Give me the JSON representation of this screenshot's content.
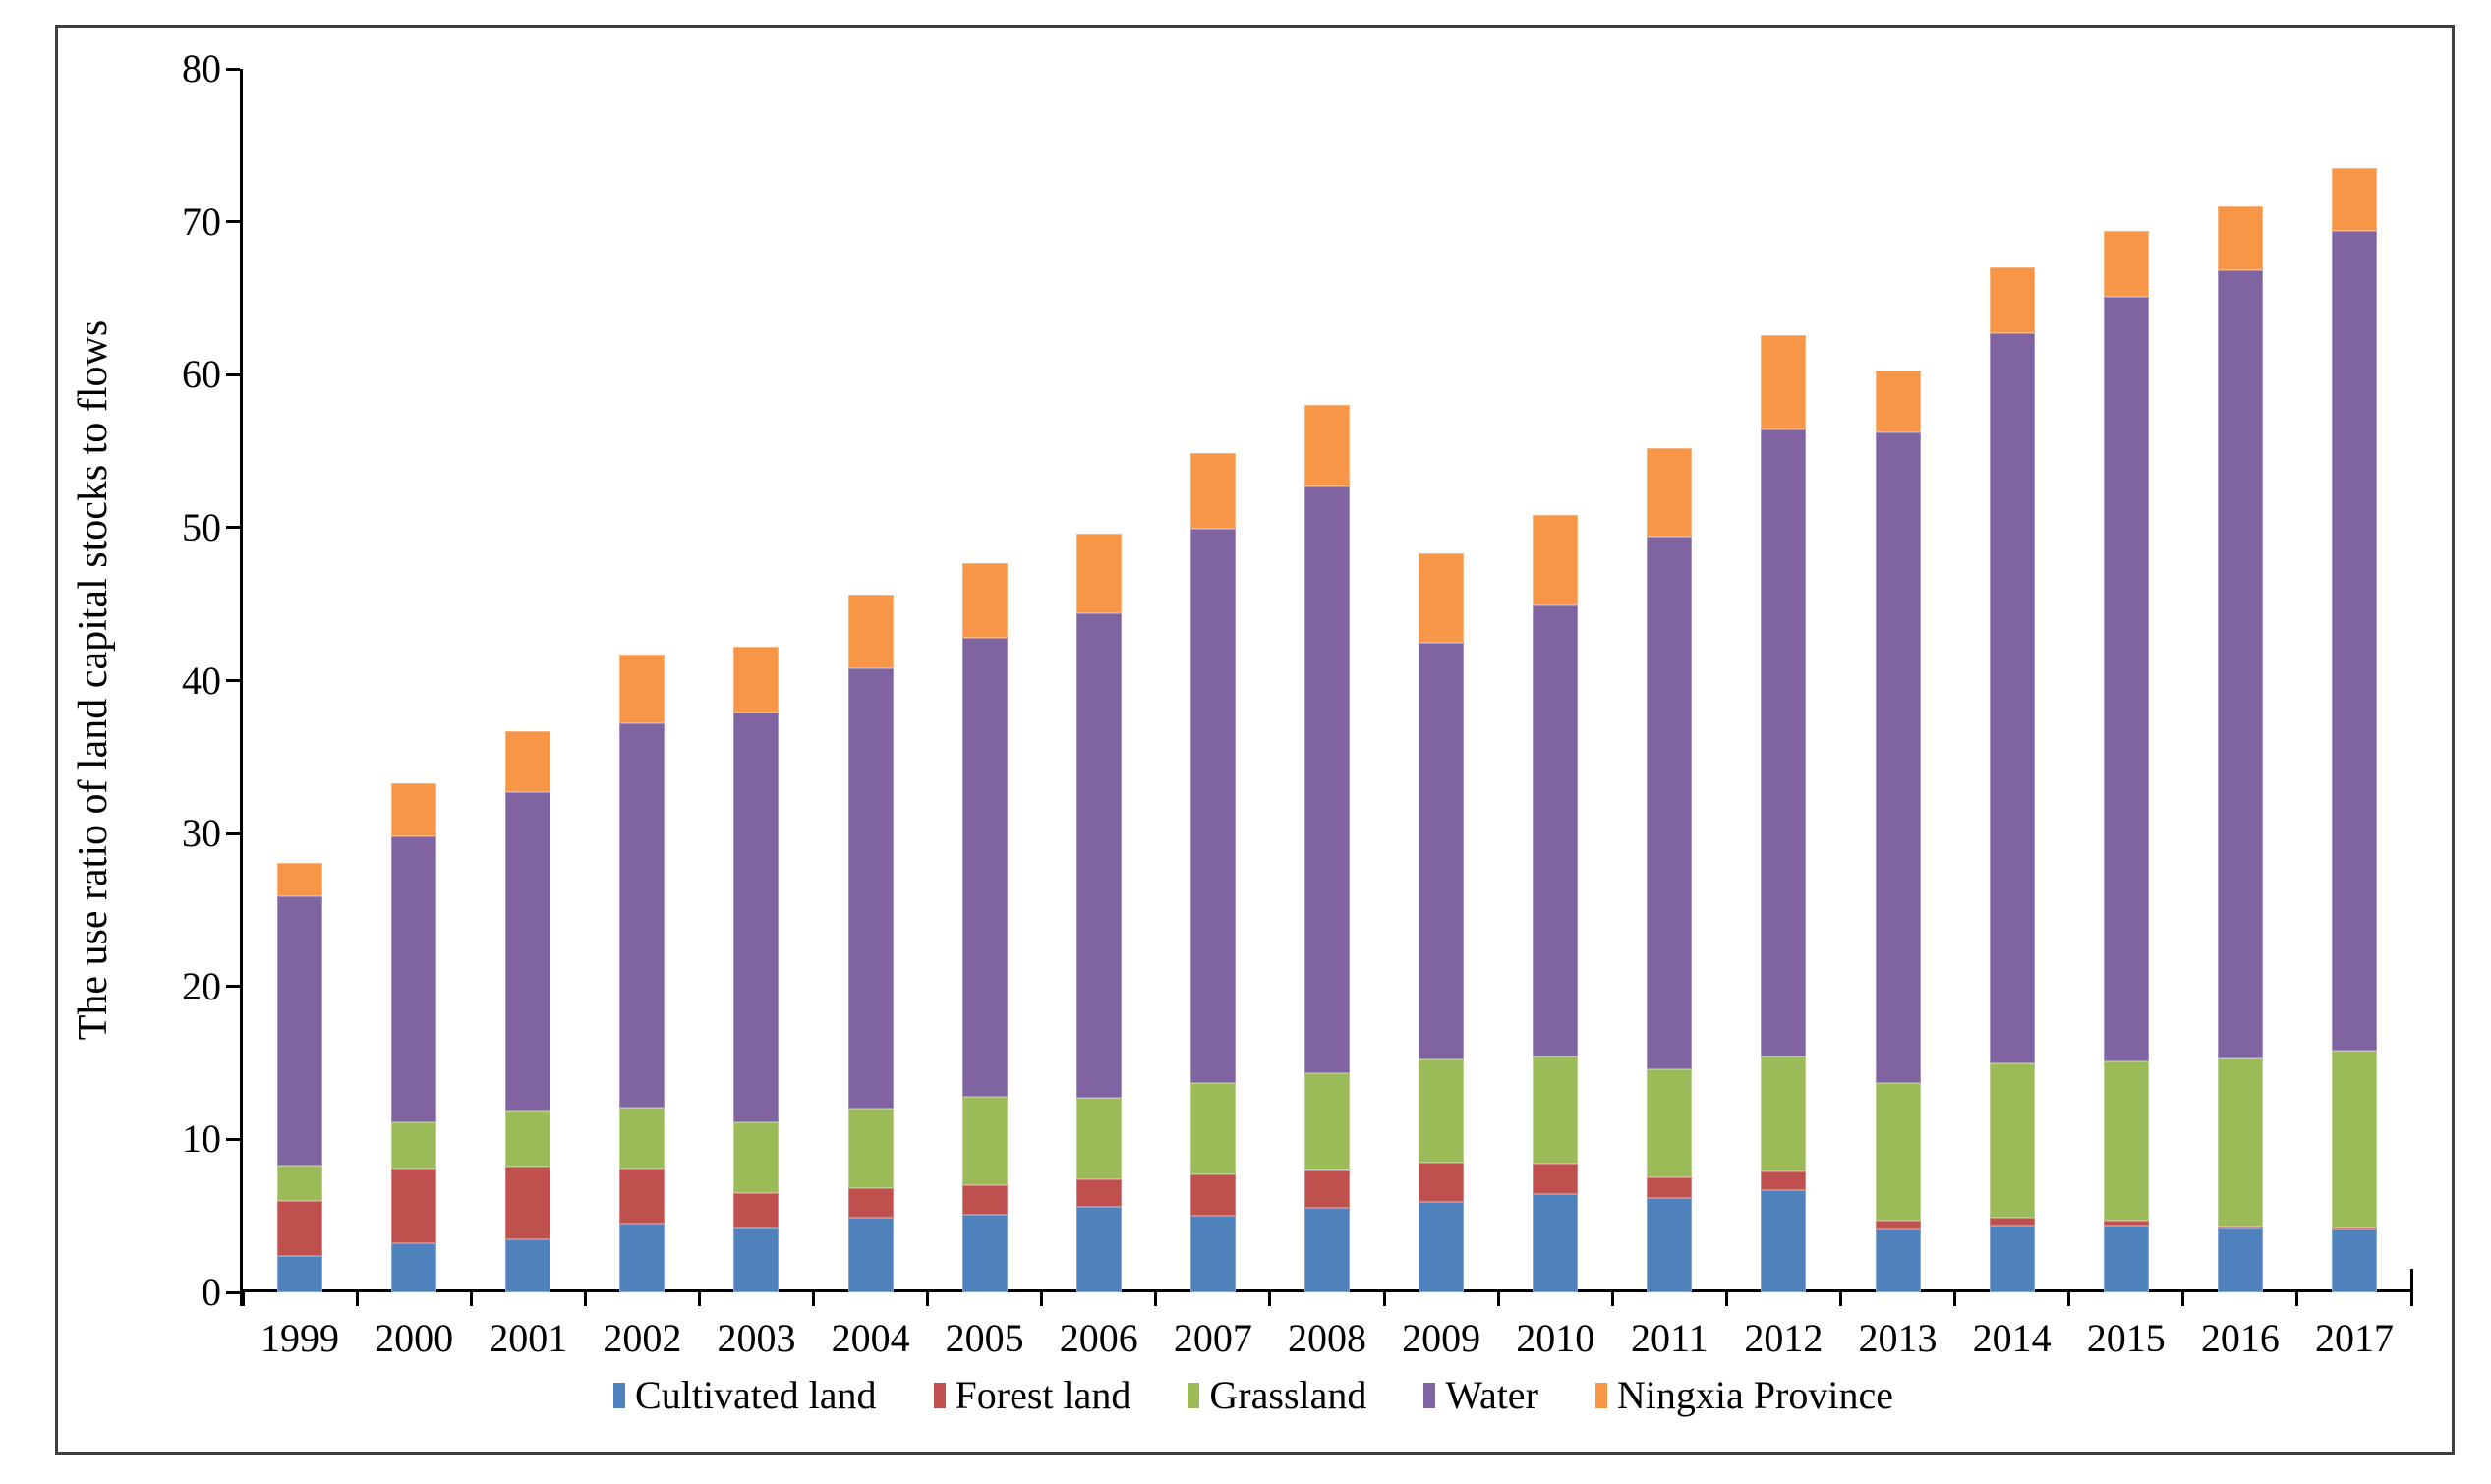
{
  "figure": {
    "y_axis_title": "The use ratio of land capital stocks to flows",
    "y_tick_labels": [
      "0",
      "10",
      "20",
      "30",
      "40",
      "50",
      "60",
      "70",
      "80"
    ],
    "background": "#ffffff",
    "border_color": "#3f3f3f"
  },
  "chart_data": {
    "type": "bar",
    "stacked": true,
    "title": "",
    "xlabel": "",
    "ylabel": "The use ratio of land capital stocks to flows",
    "ylim": [
      0,
      80
    ],
    "y_tick_step": 10,
    "grid": false,
    "legend_position": "bottom",
    "categories": [
      "1999",
      "2000",
      "2001",
      "2002",
      "2003",
      "2004",
      "2005",
      "2006",
      "2007",
      "2008",
      "2009",
      "2010",
      "2011",
      "2012",
      "2013",
      "2014",
      "2015",
      "2016",
      "2017"
    ],
    "series": [
      {
        "name": "Cultivated land",
        "color": "#4F81BD",
        "values": [
          2.4,
          3.2,
          3.5,
          4.5,
          4.2,
          4.9,
          5.1,
          5.6,
          5.0,
          5.5,
          5.9,
          6.4,
          6.2,
          6.7,
          4.1,
          4.4,
          4.4,
          4.2,
          4.1
        ]
      },
      {
        "name": "Forest land",
        "color": "#C0504D",
        "values": [
          3.6,
          4.9,
          4.7,
          3.6,
          2.3,
          1.9,
          1.9,
          1.8,
          2.7,
          2.5,
          2.6,
          2.0,
          1.3,
          1.2,
          0.6,
          0.5,
          0.3,
          0.1,
          0.1
        ]
      },
      {
        "name": "Grassland",
        "color": "#9BBB59",
        "values": [
          2.3,
          3.0,
          3.7,
          4.0,
          4.6,
          5.2,
          5.8,
          5.3,
          6.0,
          6.3,
          6.7,
          7.0,
          7.1,
          7.5,
          9.0,
          10.1,
          10.4,
          11.0,
          11.6
        ]
      },
      {
        "name": "Water",
        "color": "#8064A2",
        "values": [
          17.6,
          18.7,
          20.8,
          25.1,
          26.8,
          28.8,
          30.0,
          31.7,
          36.2,
          38.4,
          27.3,
          29.5,
          34.8,
          41.0,
          42.5,
          47.7,
          50.0,
          51.5,
          53.6
        ]
      },
      {
        "name": "Ningxia Province",
        "color": "#F79646",
        "values": [
          2.2,
          3.5,
          4.0,
          4.5,
          4.3,
          4.8,
          4.9,
          5.2,
          5.0,
          5.3,
          5.8,
          5.9,
          5.8,
          6.2,
          4.1,
          4.3,
          4.3,
          4.2,
          4.1
        ]
      }
    ]
  }
}
